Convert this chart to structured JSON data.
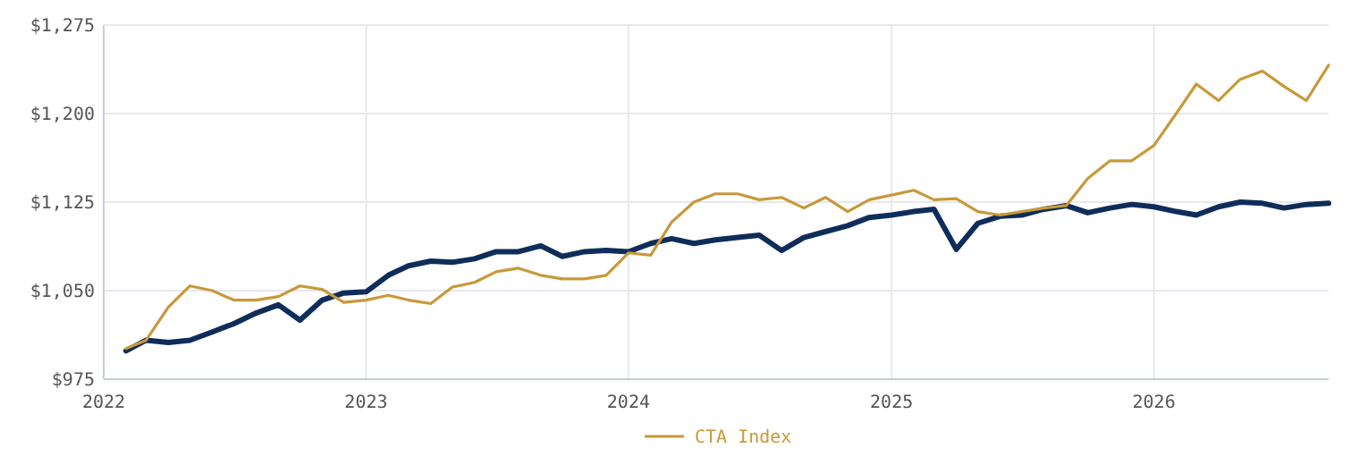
{
  "chart_data": {
    "type": "line",
    "xlim": [
      "2022-01",
      "2026-09"
    ],
    "xticks": [
      {
        "value": "2022",
        "label": "2022"
      },
      {
        "value": "2023",
        "label": "2023"
      },
      {
        "value": "2024",
        "label": "2024"
      },
      {
        "value": "2025",
        "label": "2025"
      },
      {
        "value": "2026",
        "label": "2026"
      }
    ],
    "ylim": [
      975,
      1275
    ],
    "yticks": [
      {
        "value": 975,
        "label": "$975"
      },
      {
        "value": 1050,
        "label": "$1,050"
      },
      {
        "value": 1125,
        "label": "$1,125"
      },
      {
        "value": 1200,
        "label": "$1,200"
      },
      {
        "value": 1275,
        "label": "$1,275"
      }
    ],
    "grid": true,
    "legend": "bottom",
    "marker": "none",
    "line_style": "solid",
    "x": [
      "2022-02",
      "2022-03",
      "2022-04",
      "2022-05",
      "2022-06",
      "2022-07",
      "2022-08",
      "2022-09",
      "2022-10",
      "2022-11",
      "2022-12",
      "2023-01",
      "2023-02",
      "2023-03",
      "2023-04",
      "2023-05",
      "2023-06",
      "2023-07",
      "2023-08",
      "2023-09",
      "2023-10",
      "2023-11",
      "2023-12",
      "2024-01",
      "2024-02",
      "2024-03",
      "2024-04",
      "2024-05",
      "2024-06",
      "2024-07",
      "2024-08",
      "2024-09",
      "2024-10",
      "2024-11",
      "2024-12",
      "2025-01",
      "2025-02",
      "2025-03",
      "2025-04",
      "2025-05",
      "2025-06",
      "2025-07",
      "2025-08",
      "2025-09",
      "2025-10",
      "2025-11",
      "2025-12",
      "2026-01",
      "2026-02",
      "2026-03",
      "2026-04",
      "2026-05",
      "2026-06",
      "2026-07",
      "2026-08",
      "2026-09"
    ],
    "series": [
      {
        "color": "#0f2d5a",
        "values": [
          999,
          1008,
          1006,
          1008,
          1015,
          1022,
          1031,
          1038,
          1025,
          1042,
          1048,
          1049,
          1063,
          1071,
          1075,
          1074,
          1077,
          1083,
          1083,
          1088,
          1079,
          1083,
          1084,
          1083,
          1090,
          1094,
          1090,
          1093,
          1095,
          1097,
          1084,
          1095,
          1100,
          1105,
          1112,
          1114,
          1117,
          1119,
          1085,
          1107,
          1113,
          1114,
          1119,
          1122,
          1116,
          1120,
          1123,
          1121,
          1117,
          1114,
          1121,
          1125,
          1124,
          1120,
          1123,
          1124
        ]
      },
      {
        "name": "CTA Index",
        "color": "#c8993a",
        "values": [
          1001,
          1008,
          1036,
          1054,
          1050,
          1042,
          1042,
          1045,
          1054,
          1051,
          1040,
          1042,
          1046,
          1042,
          1039,
          1053,
          1057,
          1066,
          1069,
          1063,
          1060,
          1060,
          1063,
          1082,
          1080,
          1108,
          1125,
          1132,
          1132,
          1127,
          1129,
          1120,
          1129,
          1117,
          1127,
          1131,
          1135,
          1127,
          1128,
          1117,
          1114,
          1117,
          1120,
          1122,
          1145,
          1160,
          1160,
          1173,
          1200,
          1225,
          1211,
          1229,
          1236,
          1223,
          1211,
          1241
        ]
      }
    ]
  }
}
